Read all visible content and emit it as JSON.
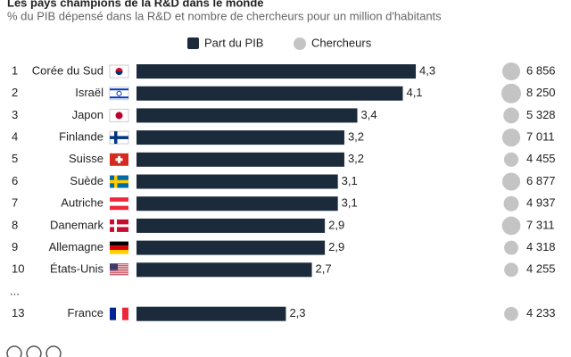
{
  "chart_data": {
    "type": "bar",
    "title": "Les pays champions de la R&D dans le monde",
    "subtitle": "% du PIB dépensé dans la R&D et nombre de chercheurs pour un million d'habitants",
    "ranks": [
      "1",
      "2",
      "3",
      "4",
      "5",
      "6",
      "7",
      "8",
      "9",
      "10",
      "13"
    ],
    "ellipsis": "...",
    "categories": [
      "Corée du Sud",
      "Israël",
      "Japon",
      "Finlande",
      "Suisse",
      "Suède",
      "Autriche",
      "Danemark",
      "Allemagne",
      "États-Unis",
      "France"
    ],
    "series": [
      {
        "name": "Part du PIB",
        "color": "#1b2b3b",
        "values": [
          4.3,
          4.1,
          3.4,
          3.2,
          3.2,
          3.1,
          3.1,
          2.9,
          2.9,
          2.7,
          2.3
        ],
        "value_labels": [
          "4,3",
          "4,1",
          "3,4",
          "3,2",
          "3,2",
          "3,1",
          "3,1",
          "2,9",
          "2,9",
          "2,7",
          "2,3"
        ]
      },
      {
        "name": "Chercheurs",
        "color": "#c4c4c4",
        "values": [
          6856,
          8250,
          5328,
          7011,
          4455,
          6877,
          4937,
          7311,
          4318,
          4255,
          4233
        ],
        "value_labels": [
          "6 856",
          "8 250",
          "5 328",
          "7 011",
          "4 455",
          "6 877",
          "4 937",
          "7 311",
          "4 318",
          "4 255",
          "4 233"
        ]
      }
    ]
  }
}
